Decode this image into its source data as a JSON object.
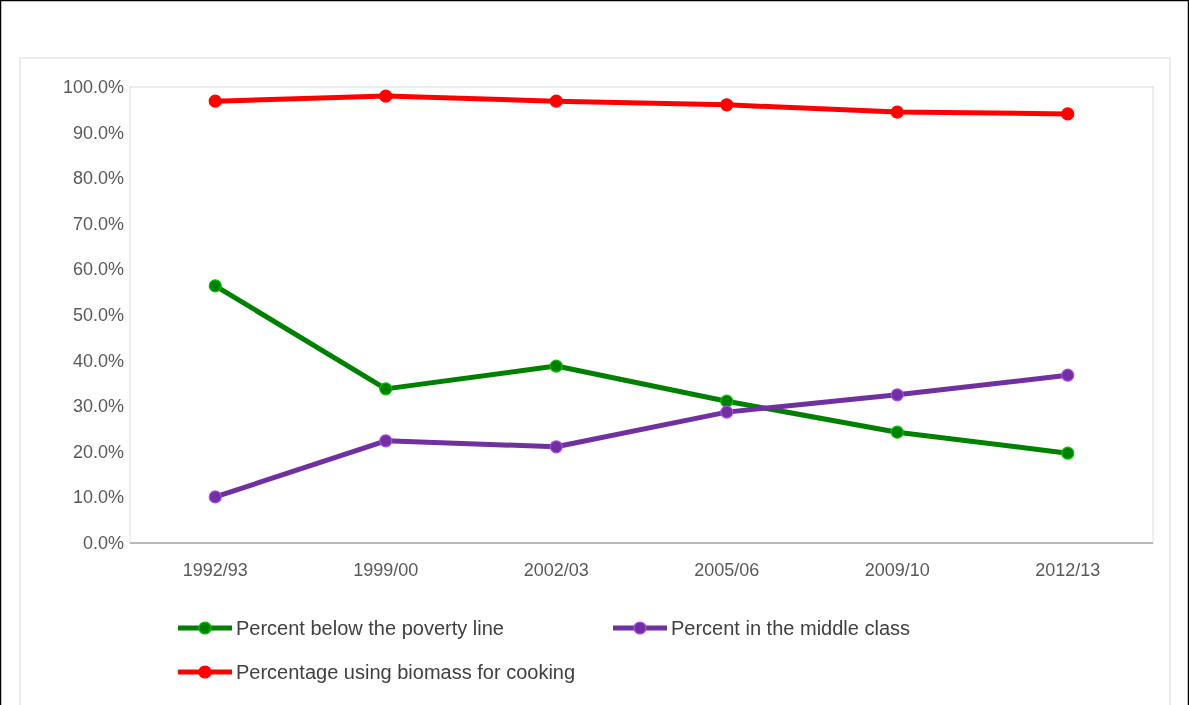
{
  "chart_data": {
    "type": "line",
    "categories": [
      "1992/93",
      "1999/00",
      "2002/03",
      "2005/06",
      "2009/10",
      "2012/13"
    ],
    "series": [
      {
        "name": "Percent below the poverty line",
        "color": "#008000",
        "values": [
          56.4,
          33.8,
          38.8,
          31.1,
          24.3,
          19.7
        ]
      },
      {
        "name": "Percent in the middle class",
        "color": "#7030a0",
        "values": [
          10.1,
          22.4,
          21.1,
          28.7,
          32.5,
          36.8
        ]
      },
      {
        "name": "Percentage using biomass for cooking",
        "color": "#ff0000",
        "values": [
          96.9,
          98.0,
          96.9,
          96.1,
          94.5,
          94.1
        ]
      }
    ],
    "ylim": [
      0,
      100
    ],
    "yticks": [
      {
        "value": 0,
        "label": "0.0%"
      },
      {
        "value": 10,
        "label": "10.0%"
      },
      {
        "value": 20,
        "label": "20.0%"
      },
      {
        "value": 30,
        "label": "30.0%"
      },
      {
        "value": 40,
        "label": "40.0%"
      },
      {
        "value": 50,
        "label": "50.0%"
      },
      {
        "value": 60,
        "label": "60.0%"
      },
      {
        "value": 70,
        "label": "70.0%"
      },
      {
        "value": 80,
        "label": "80.0%"
      },
      {
        "value": 90,
        "label": "90.0%"
      },
      {
        "value": 100,
        "label": "100.0%"
      }
    ],
    "grid": false,
    "legend": "bottom",
    "marker": "circle",
    "line_style": "solid"
  }
}
